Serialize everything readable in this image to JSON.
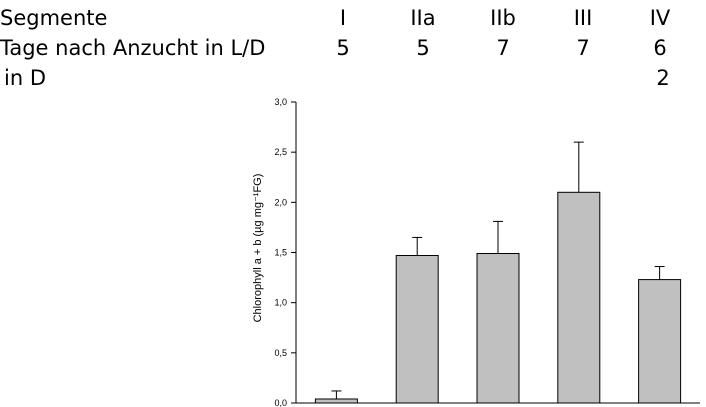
{
  "header": {
    "rows": [
      {
        "label": "Segmente",
        "values": [
          "I",
          "IIa",
          "IIb",
          "III",
          "IV"
        ]
      },
      {
        "label": "Tage nach Anzucht in L/D",
        "values": [
          "5",
          "5",
          "7",
          "7",
          "6"
        ]
      },
      {
        "label": " in D",
        "values": [
          "",
          "",
          "",
          "",
          "2"
        ]
      }
    ]
  },
  "chart_data": {
    "type": "bar",
    "categories": [
      "I",
      "IIa",
      "IIb",
      "III",
      "IV"
    ],
    "values": [
      0.04,
      1.47,
      1.49,
      2.1,
      1.23
    ],
    "error": [
      0.08,
      0.18,
      0.32,
      0.5,
      0.13
    ],
    "ylabel": "Chlorophyll a + b (µg mg⁻¹FG)",
    "ylim": [
      0,
      3.0
    ],
    "yticks": [
      "0,0",
      "0,5",
      "1,0",
      "1,5",
      "2,0",
      "2,5",
      "3,0"
    ],
    "bar_color": "#c0c0c0",
    "grid": false
  }
}
